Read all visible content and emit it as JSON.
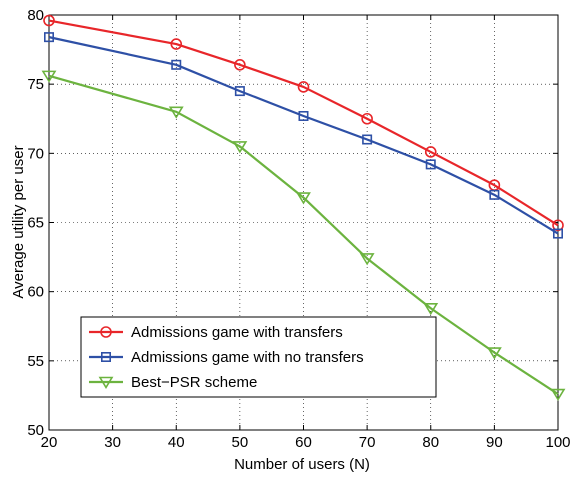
{
  "chart_data": {
    "type": "line",
    "title": "",
    "xlabel": "Number of users (N)",
    "ylabel": "Average utility per user",
    "x": [
      20,
      40,
      50,
      60,
      70,
      80,
      90,
      100
    ],
    "xlim": [
      20,
      100
    ],
    "ylim": [
      50,
      80
    ],
    "xticks": [
      20,
      30,
      40,
      50,
      60,
      70,
      80,
      90,
      100
    ],
    "yticks": [
      50,
      55,
      60,
      65,
      70,
      75,
      80
    ],
    "xtick_labels": [
      "20",
      "30",
      "40",
      "50",
      "60",
      "70",
      "80",
      "90",
      "100"
    ],
    "ytick_labels": [
      "50",
      "55",
      "60",
      "65",
      "70",
      "75",
      "80"
    ],
    "grid": true,
    "legend_position": "bottom-left",
    "series": [
      {
        "name": "Admissions game with transfers",
        "color": "#e8262a",
        "marker": "circle",
        "values": [
          79.6,
          77.9,
          76.4,
          74.8,
          72.5,
          70.1,
          67.7,
          64.8
        ]
      },
      {
        "name": "Admissions game with no transfers",
        "color": "#2e50a6",
        "marker": "square",
        "values": [
          78.4,
          76.4,
          74.5,
          72.7,
          71.0,
          69.2,
          67.0,
          64.2
        ]
      },
      {
        "name": "Best−PSR scheme",
        "color": "#6cb33f",
        "marker": "triangle-down",
        "values": [
          75.6,
          73.0,
          70.5,
          66.8,
          62.4,
          58.8,
          55.6,
          52.6
        ]
      }
    ]
  }
}
